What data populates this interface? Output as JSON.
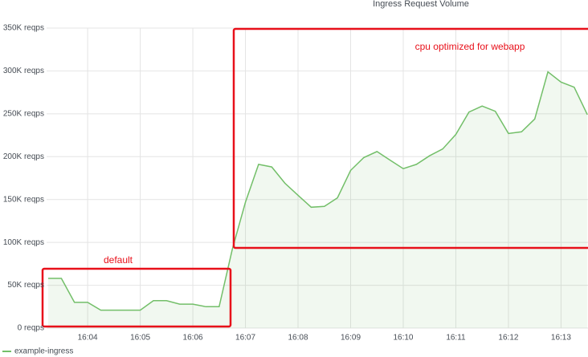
{
  "chart_data": {
    "type": "line",
    "title": "Ingress Request Volume",
    "categories": [
      null,
      null,
      null,
      "16:04",
      null,
      null,
      null,
      "16:05",
      null,
      null,
      null,
      "16:06",
      null,
      null,
      null,
      "16:07",
      null,
      null,
      null,
      "16:08",
      null,
      null,
      null,
      "16:09",
      null,
      null,
      null,
      "16:10",
      null,
      null,
      null,
      "16:11",
      null,
      null,
      null,
      "16:12",
      null,
      null,
      null,
      "16:13",
      null,
      null
    ],
    "series": [
      {
        "name": "example-ingress",
        "color": "#73bf69",
        "values": [
          58000,
          58000,
          30000,
          30000,
          21000,
          21000,
          21000,
          21000,
          32000,
          32000,
          28000,
          28000,
          25000,
          25000,
          92000,
          147000,
          191000,
          188000,
          169000,
          155000,
          141000,
          142000,
          152000,
          184000,
          199000,
          206000,
          196000,
          186000,
          191000,
          201000,
          209000,
          226000,
          252000,
          259000,
          253000,
          227000,
          229000,
          244000,
          299000,
          287000,
          281000,
          249000
        ]
      }
    ],
    "ylim": [
      0,
      350000
    ],
    "yticks": [
      {
        "value": 0,
        "label": "0 reqps"
      },
      {
        "value": 50000,
        "label": "50K reqps"
      },
      {
        "value": 100000,
        "label": "100K reqps"
      },
      {
        "value": 150000,
        "label": "150K reqps"
      },
      {
        "value": 200000,
        "label": "200K reqps"
      },
      {
        "value": 250000,
        "label": "250K reqps"
      },
      {
        "value": 300000,
        "label": "300K reqps"
      },
      {
        "value": 350000,
        "label": "350K reqps"
      }
    ],
    "grid": true,
    "annotations": [
      "default",
      "cpu optimized for webapp"
    ]
  }
}
